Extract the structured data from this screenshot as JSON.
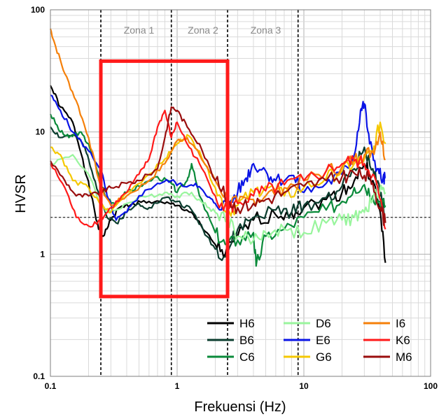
{
  "chart_data": {
    "type": "line",
    "xlabel": "Frekuensi (Hz)",
    "ylabel": "HVSR",
    "xscale": "log",
    "yscale": "log",
    "xlim": [
      0.1,
      100
    ],
    "ylim": [
      0.1,
      100
    ],
    "x_tick_labels": [
      "0.1",
      "1",
      "10",
      "100"
    ],
    "y_tick_labels": [
      "0.1",
      "1",
      "10",
      "100"
    ],
    "grid": true,
    "reference_line_y": 2,
    "zone_boundaries_hz": [
      0.25,
      0.9,
      2.5,
      9.0
    ],
    "zones": [
      {
        "label": "Zona 1",
        "x": 0.5
      },
      {
        "label": "Zona 2",
        "x": 1.6
      },
      {
        "label": "Zona 3",
        "x": 5.0
      }
    ],
    "highlight_box": {
      "x": [
        0.25,
        2.5
      ],
      "y": [
        0.45,
        38
      ],
      "color": "#ff1a1a"
    },
    "legend_position": "bottom-right",
    "series": [
      {
        "name": "H6",
        "color": "#000000",
        "points": [
          [
            0.1,
            24
          ],
          [
            0.12,
            16
          ],
          [
            0.15,
            12
          ],
          [
            0.18,
            6
          ],
          [
            0.21,
            3
          ],
          [
            0.24,
            1.6
          ],
          [
            0.26,
            1.4
          ],
          [
            0.3,
            1.9
          ],
          [
            0.35,
            2.4
          ],
          [
            0.45,
            2.6
          ],
          [
            0.6,
            2.7
          ],
          [
            0.8,
            2.6
          ],
          [
            1,
            2.5
          ],
          [
            1.3,
            2.2
          ],
          [
            1.6,
            1.6
          ],
          [
            2,
            1.2
          ],
          [
            2.4,
            1.0
          ],
          [
            3,
            1.4
          ],
          [
            4,
            1.9
          ],
          [
            6,
            2.1
          ],
          [
            8,
            2.2
          ],
          [
            10,
            2.4
          ],
          [
            15,
            2.8
          ],
          [
            20,
            3.2
          ],
          [
            25,
            4.0
          ],
          [
            30,
            5.5
          ],
          [
            35,
            4.0
          ],
          [
            40,
            2.2
          ],
          [
            44,
            0.85
          ]
        ]
      },
      {
        "name": "B6",
        "color": "#0b3d2e",
        "points": [
          [
            0.1,
            11
          ],
          [
            0.12,
            9
          ],
          [
            0.15,
            9.5
          ],
          [
            0.18,
            8
          ],
          [
            0.2,
            6
          ],
          [
            0.24,
            3.2
          ],
          [
            0.28,
            2.0
          ],
          [
            0.33,
            1.8
          ],
          [
            0.4,
            2.2
          ],
          [
            0.5,
            2.6
          ],
          [
            0.6,
            2.4
          ],
          [
            0.8,
            2.9
          ],
          [
            1,
            2.7
          ],
          [
            1.3,
            2.3
          ],
          [
            1.6,
            1.6
          ],
          [
            2,
            1.1
          ],
          [
            2.4,
            0.95
          ],
          [
            3,
            1.6
          ],
          [
            4,
            2.0
          ],
          [
            6,
            2.3
          ],
          [
            8,
            2.2
          ],
          [
            10,
            2.5
          ],
          [
            15,
            2.9
          ],
          [
            20,
            3.6
          ],
          [
            25,
            5.0
          ],
          [
            30,
            7.5
          ],
          [
            35,
            5.0
          ],
          [
            40,
            3.0
          ],
          [
            44,
            2.0
          ]
        ]
      },
      {
        "name": "C6",
        "color": "#0a8a3a",
        "points": [
          [
            0.1,
            14
          ],
          [
            0.12,
            10
          ],
          [
            0.14,
            9
          ],
          [
            0.17,
            10
          ],
          [
            0.2,
            8
          ],
          [
            0.24,
            4.5
          ],
          [
            0.27,
            3.0
          ],
          [
            0.32,
            2.6
          ],
          [
            0.4,
            3.2
          ],
          [
            0.5,
            3.6
          ],
          [
            0.7,
            4.3
          ],
          [
            0.9,
            3.8
          ],
          [
            1,
            3.2
          ],
          [
            1.2,
            4.0
          ],
          [
            1.3,
            5.5
          ],
          [
            1.5,
            3.0
          ],
          [
            2,
            1.5
          ],
          [
            2.4,
            1.2
          ],
          [
            3,
            1.3
          ],
          [
            4,
            1.5
          ],
          [
            4.2,
            0.8
          ],
          [
            5,
            1.4
          ],
          [
            7,
            1.6
          ],
          [
            10,
            2.0
          ],
          [
            15,
            2.3
          ],
          [
            20,
            2.7
          ],
          [
            25,
            3.5
          ],
          [
            30,
            3.7
          ],
          [
            35,
            3.0
          ],
          [
            40,
            2.7
          ],
          [
            44,
            2.5
          ]
        ]
      },
      {
        "name": "D6",
        "color": "#99f59d",
        "points": [
          [
            0.1,
            5.5
          ],
          [
            0.15,
            6.5
          ],
          [
            0.2,
            4.5
          ],
          [
            0.25,
            2.5
          ],
          [
            0.3,
            2.2
          ],
          [
            0.4,
            2.6
          ],
          [
            0.6,
            3.0
          ],
          [
            0.8,
            3.2
          ],
          [
            1,
            3.0
          ],
          [
            1.3,
            3.2
          ],
          [
            1.6,
            2.6
          ],
          [
            2,
            2.2
          ],
          [
            2.5,
            2.0
          ],
          [
            3,
            1.4
          ],
          [
            4,
            1.3
          ],
          [
            5,
            1.5
          ],
          [
            7,
            1.6
          ],
          [
            10,
            1.5
          ],
          [
            15,
            1.8
          ],
          [
            20,
            1.9
          ],
          [
            25,
            2.0
          ],
          [
            30,
            2.2
          ],
          [
            35,
            2.8
          ],
          [
            40,
            3.5
          ],
          [
            44,
            3.2
          ]
        ]
      },
      {
        "name": "E6",
        "color": "#0a14e6",
        "points": [
          [
            0.1,
            20
          ],
          [
            0.12,
            15
          ],
          [
            0.15,
            10
          ],
          [
            0.2,
            7
          ],
          [
            0.25,
            5.0
          ],
          [
            0.28,
            3.0
          ],
          [
            0.33,
            1.9
          ],
          [
            0.4,
            2.2
          ],
          [
            0.5,
            3.0
          ],
          [
            0.7,
            3.8
          ],
          [
            0.9,
            4.0
          ],
          [
            1.1,
            3.6
          ],
          [
            1.4,
            3.8
          ],
          [
            1.7,
            3.0
          ],
          [
            2,
            2.6
          ],
          [
            2.5,
            2.5
          ],
          [
            3,
            3.2
          ],
          [
            3.5,
            4.2
          ],
          [
            4,
            5.5
          ],
          [
            5,
            4.8
          ],
          [
            6,
            4.0
          ],
          [
            8,
            4.4
          ],
          [
            10,
            3.2
          ],
          [
            15,
            3.8
          ],
          [
            20,
            4.5
          ],
          [
            25,
            6.5
          ],
          [
            28,
            15
          ],
          [
            30,
            17
          ],
          [
            33,
            8
          ],
          [
            38,
            5.0
          ],
          [
            42,
            4.0
          ],
          [
            44,
            4.2
          ]
        ]
      },
      {
        "name": "G6",
        "color": "#f5c800",
        "points": [
          [
            0.1,
            7.5
          ],
          [
            0.12,
            6.5
          ],
          [
            0.15,
            4.0
          ],
          [
            0.2,
            3.5
          ],
          [
            0.25,
            2.5
          ],
          [
            0.3,
            2.2
          ],
          [
            0.4,
            3.2
          ],
          [
            0.6,
            4.5
          ],
          [
            0.8,
            6.0
          ],
          [
            1,
            8.0
          ],
          [
            1.2,
            9.5
          ],
          [
            1.5,
            7.0
          ],
          [
            2,
            3.5
          ],
          [
            2.5,
            2.2
          ],
          [
            3,
            2.5
          ],
          [
            4,
            3.2
          ],
          [
            5,
            3.6
          ],
          [
            7,
            3.0
          ],
          [
            10,
            3.5
          ],
          [
            15,
            4.2
          ],
          [
            20,
            4.8
          ],
          [
            25,
            5.5
          ],
          [
            30,
            6.0
          ],
          [
            35,
            6.8
          ],
          [
            40,
            12
          ],
          [
            44,
            8.0
          ]
        ]
      },
      {
        "name": "I6",
        "color": "#f5800a",
        "points": [
          [
            0.1,
            70
          ],
          [
            0.11,
            50
          ],
          [
            0.13,
            30
          ],
          [
            0.16,
            18
          ],
          [
            0.2,
            9
          ],
          [
            0.25,
            3.5
          ],
          [
            0.3,
            2.5
          ],
          [
            0.4,
            3.0
          ],
          [
            0.6,
            4.0
          ],
          [
            0.8,
            5.5
          ],
          [
            1,
            8.5
          ],
          [
            1.2,
            9.0
          ],
          [
            1.5,
            6.5
          ],
          [
            2,
            4.0
          ],
          [
            2.5,
            2.8
          ],
          [
            3,
            2.6
          ],
          [
            4,
            2.8
          ],
          [
            5,
            3.0
          ],
          [
            7,
            3.5
          ],
          [
            10,
            4.0
          ],
          [
            15,
            4.8
          ],
          [
            20,
            5.2
          ],
          [
            25,
            6.0
          ],
          [
            30,
            6.5
          ],
          [
            35,
            7.0
          ],
          [
            40,
            10
          ],
          [
            44,
            6.0
          ]
        ]
      },
      {
        "name": "K6",
        "color": "#ff1a1a",
        "points": [
          [
            0.1,
            5.5
          ],
          [
            0.13,
            3.5
          ],
          [
            0.16,
            2.0
          ],
          [
            0.2,
            1.7
          ],
          [
            0.25,
            1.9
          ],
          [
            0.3,
            2.4
          ],
          [
            0.4,
            3.2
          ],
          [
            0.5,
            4.5
          ],
          [
            0.6,
            6.0
          ],
          [
            0.7,
            11
          ],
          [
            0.8,
            15
          ],
          [
            0.9,
            9.0
          ],
          [
            1,
            12
          ],
          [
            1.2,
            8.0
          ],
          [
            1.5,
            5.5
          ],
          [
            2,
            3.0
          ],
          [
            2.5,
            2.3
          ],
          [
            3,
            2.6
          ],
          [
            4,
            3.0
          ],
          [
            5,
            3.3
          ],
          [
            7,
            3.7
          ],
          [
            10,
            4.0
          ],
          [
            15,
            4.8
          ],
          [
            20,
            5.5
          ],
          [
            25,
            5.8
          ],
          [
            30,
            5.5
          ],
          [
            35,
            4.5
          ],
          [
            40,
            2.8
          ],
          [
            44,
            1.6
          ]
        ]
      },
      {
        "name": "M6",
        "color": "#9a0e0e",
        "points": [
          [
            0.1,
            5.8
          ],
          [
            0.13,
            4.0
          ],
          [
            0.16,
            3.0
          ],
          [
            0.2,
            3.0
          ],
          [
            0.25,
            3.2
          ],
          [
            0.3,
            3.5
          ],
          [
            0.4,
            3.8
          ],
          [
            0.5,
            4.0
          ],
          [
            0.7,
            5.0
          ],
          [
            0.8,
            9.0
          ],
          [
            0.9,
            16
          ],
          [
            1,
            15
          ],
          [
            1.2,
            11
          ],
          [
            1.5,
            8.0
          ],
          [
            2,
            4.0
          ],
          [
            2.5,
            2.8
          ],
          [
            3,
            2.4
          ],
          [
            4,
            2.6
          ],
          [
            5,
            2.8
          ],
          [
            7,
            3.2
          ],
          [
            10,
            3.6
          ],
          [
            15,
            4.0
          ],
          [
            20,
            4.3
          ],
          [
            25,
            4.6
          ],
          [
            30,
            4.4
          ],
          [
            35,
            3.8
          ],
          [
            40,
            2.4
          ],
          [
            44,
            1.8
          ]
        ]
      }
    ]
  }
}
